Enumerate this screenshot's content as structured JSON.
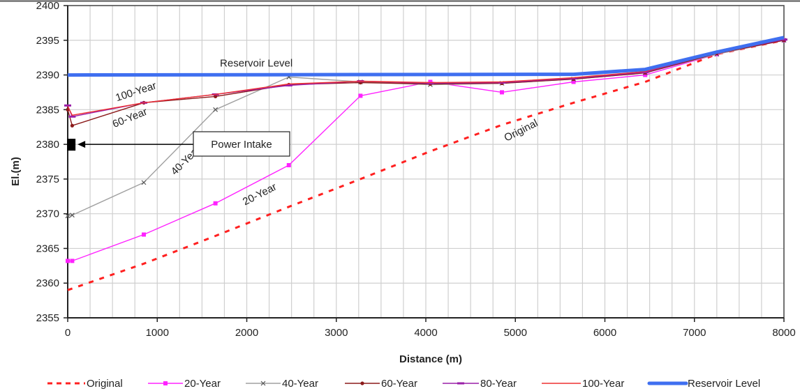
{
  "chart_data": {
    "type": "line",
    "title": "",
    "xlabel": "Distance (m)",
    "ylabel": "El.(m)",
    "xlim": [
      0,
      8000
    ],
    "ylim": [
      2355,
      2400
    ],
    "xticks": [
      0,
      1000,
      2000,
      3000,
      4000,
      5000,
      6000,
      7000,
      8000
    ],
    "yticks": [
      2355,
      2360,
      2365,
      2370,
      2375,
      2380,
      2385,
      2390,
      2395,
      2400
    ],
    "x_minor_grid_step": 250,
    "grid": true,
    "legend_position": "bottom",
    "series": [
      {
        "name": "Original",
        "color": "#ff2020",
        "style": "dashed",
        "marker": "none",
        "x": [
          0,
          850,
          1650,
          2470,
          3270,
          4050,
          4850,
          5650,
          6450,
          7250,
          8000
        ],
        "y": [
          2359,
          2362.8,
          2366.8,
          2371,
          2375,
          2379,
          2382.8,
          2386,
          2389,
          2393,
          2395
        ]
      },
      {
        "name": "20-Year",
        "color": "#ff22ff",
        "style": "solid",
        "marker": "square",
        "x": [
          0,
          50,
          850,
          1650,
          2470,
          3270,
          4050,
          4850,
          5650,
          6450,
          7250,
          8000
        ],
        "y": [
          2363.2,
          2363.2,
          2367,
          2371.5,
          2377,
          2387,
          2389,
          2387.5,
          2389,
          2390,
          2393,
          2395
        ]
      },
      {
        "name": "40-Year",
        "color": "#a0a0a0",
        "style": "solid",
        "marker": "x",
        "x": [
          0,
          50,
          850,
          1650,
          2470,
          3270,
          4050,
          4850,
          5650,
          6450,
          7250,
          8000
        ],
        "y": [
          2369.7,
          2369.8,
          2374.5,
          2385,
          2389.7,
          2389,
          2388.6,
          2388.8,
          2389.4,
          2390.3,
          2393,
          2395
        ]
      },
      {
        "name": "60-Year",
        "color": "#8b1a1a",
        "style": "solid",
        "marker": "dot",
        "x": [
          0,
          50,
          850,
          1650,
          2470,
          3270,
          4050,
          4850,
          5650,
          6450,
          7250,
          8000
        ],
        "y": [
          2385,
          2382.7,
          2386,
          2386.9,
          2388.6,
          2388.9,
          2388.7,
          2388.8,
          2389.4,
          2390.3,
          2393.1,
          2395
        ]
      },
      {
        "name": "80-Year",
        "color": "#9a1fa8",
        "style": "solid",
        "marker": "dash",
        "x": [
          0,
          50,
          850,
          1650,
          2470,
          3270,
          4050,
          4850,
          5650,
          6450,
          7250,
          8000
        ],
        "y": [
          2385.6,
          2384,
          2386,
          2387.2,
          2388.5,
          2389.1,
          2388.8,
          2388.9,
          2389.5,
          2390.4,
          2393.2,
          2395.1
        ]
      },
      {
        "name": "100-Year",
        "color": "#ee3030",
        "style": "solid",
        "marker": "none",
        "x": [
          0,
          50,
          850,
          1650,
          2470,
          3270,
          4050,
          4850,
          5650,
          6450,
          7250,
          8000
        ],
        "y": [
          2385.5,
          2384.2,
          2386,
          2387.2,
          2388.7,
          2389.1,
          2388.9,
          2389,
          2389.6,
          2390.5,
          2393.3,
          2395.2
        ]
      },
      {
        "name": "Reservoir Level",
        "color": "#3f6ff0",
        "style": "thick",
        "marker": "none",
        "x": [
          0,
          5650,
          6450,
          7250,
          8000
        ],
        "y": [
          2390,
          2390.1,
          2390.8,
          2393.3,
          2395.4
        ]
      }
    ],
    "annotations": [
      {
        "text": "Reservoir Level",
        "x": 1700,
        "y": 2391.2,
        "rotation_deg": 0
      },
      {
        "text": "100-Year",
        "x": 550,
        "y": 2386.2,
        "rotation_deg": -18
      },
      {
        "text": "60-Year",
        "x": 520,
        "y": 2382.4,
        "rotation_deg": -22
      },
      {
        "text": "40-Year",
        "x": 1200,
        "y": 2375.5,
        "rotation_deg": -45
      },
      {
        "text": "20-Year",
        "x": 1980,
        "y": 2371.2,
        "rotation_deg": -27
      },
      {
        "text": "Original",
        "x": 4900,
        "y": 2380.4,
        "rotation_deg": -27
      }
    ],
    "callout": {
      "text": "Power Intake",
      "target_x": 40,
      "target_y": 2380,
      "marker": "black-square"
    }
  }
}
